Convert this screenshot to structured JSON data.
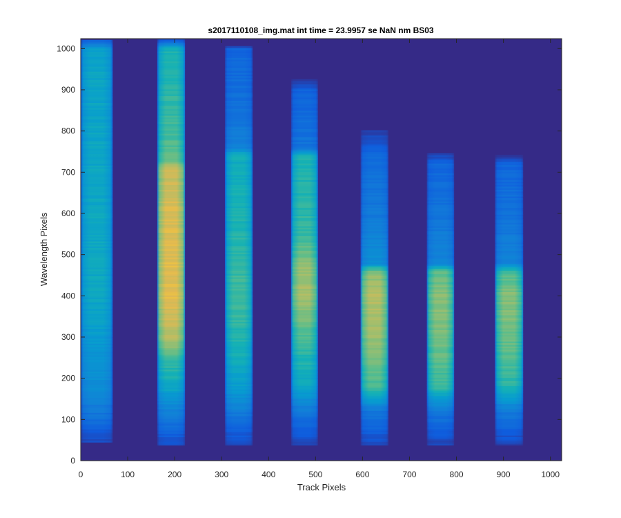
{
  "chart_data": {
    "type": "heatmap",
    "title": "s2017110108_img.mat int time = 23.9957 se  NaN nm BS03",
    "xlabel": "Track Pixels",
    "ylabel": "Wavelength Pixels",
    "xlim": [
      0,
      1024
    ],
    "ylim": [
      0,
      1024
    ],
    "xticks": [
      0,
      100,
      200,
      300,
      400,
      500,
      600,
      700,
      800,
      900,
      1000
    ],
    "yticks": [
      0,
      100,
      200,
      300,
      400,
      500,
      600,
      700,
      800,
      900,
      1000
    ],
    "colormap": "parula",
    "background_color": "#352a87",
    "grid": false,
    "legend": "none",
    "tracks": [
      {
        "x_start": 0,
        "x_end": 68,
        "y_start": 45,
        "y_end": 1020,
        "profile": [
          [
            45,
            0.1
          ],
          [
            120,
            0.28
          ],
          [
            180,
            0.38
          ],
          [
            260,
            0.42
          ],
          [
            400,
            0.5
          ],
          [
            600,
            0.5
          ],
          [
            800,
            0.49
          ],
          [
            1000,
            0.48
          ],
          [
            1020,
            0.18
          ]
        ]
      },
      {
        "x_start": 163,
        "x_end": 222,
        "y_start": 38,
        "y_end": 1020,
        "profile": [
          [
            38,
            0.1
          ],
          [
            120,
            0.32
          ],
          [
            180,
            0.5
          ],
          [
            250,
            0.62
          ],
          [
            300,
            0.78
          ],
          [
            400,
            0.86
          ],
          [
            600,
            0.84
          ],
          [
            715,
            0.8
          ],
          [
            730,
            0.66
          ],
          [
            800,
            0.62
          ],
          [
            900,
            0.58
          ],
          [
            1000,
            0.55
          ],
          [
            1020,
            0.18
          ]
        ]
      },
      {
        "x_start": 307,
        "x_end": 366,
        "y_start": 38,
        "y_end": 1005,
        "profile": [
          [
            38,
            0.08
          ],
          [
            120,
            0.3
          ],
          [
            180,
            0.45
          ],
          [
            280,
            0.56
          ],
          [
            400,
            0.62
          ],
          [
            600,
            0.55
          ],
          [
            745,
            0.52
          ],
          [
            760,
            0.32
          ],
          [
            850,
            0.25
          ],
          [
            1000,
            0.2
          ],
          [
            1005,
            0.08
          ]
        ]
      },
      {
        "x_start": 448,
        "x_end": 505,
        "y_start": 38,
        "y_end": 925,
        "profile": [
          [
            38,
            0.08
          ],
          [
            120,
            0.28
          ],
          [
            180,
            0.5
          ],
          [
            280,
            0.6
          ],
          [
            400,
            0.76
          ],
          [
            460,
            0.74
          ],
          [
            550,
            0.6
          ],
          [
            740,
            0.55
          ],
          [
            760,
            0.26
          ],
          [
            900,
            0.18
          ],
          [
            925,
            0.06
          ]
        ]
      },
      {
        "x_start": 596,
        "x_end": 655,
        "y_start": 38,
        "y_end": 800,
        "profile": [
          [
            38,
            0.08
          ],
          [
            120,
            0.28
          ],
          [
            180,
            0.62
          ],
          [
            280,
            0.72
          ],
          [
            400,
            0.78
          ],
          [
            460,
            0.7
          ],
          [
            480,
            0.38
          ],
          [
            600,
            0.28
          ],
          [
            740,
            0.22
          ],
          [
            800,
            0.06
          ]
        ]
      },
      {
        "x_start": 737,
        "x_end": 795,
        "y_start": 38,
        "y_end": 745,
        "profile": [
          [
            38,
            0.08
          ],
          [
            120,
            0.28
          ],
          [
            180,
            0.6
          ],
          [
            280,
            0.68
          ],
          [
            400,
            0.72
          ],
          [
            460,
            0.65
          ],
          [
            480,
            0.34
          ],
          [
            600,
            0.26
          ],
          [
            720,
            0.2
          ],
          [
            745,
            0.06
          ]
        ]
      },
      {
        "x_start": 882,
        "x_end": 942,
        "y_start": 38,
        "y_end": 740,
        "profile": [
          [
            38,
            0.08
          ],
          [
            120,
            0.28
          ],
          [
            180,
            0.58
          ],
          [
            280,
            0.66
          ],
          [
            400,
            0.72
          ],
          [
            460,
            0.62
          ],
          [
            480,
            0.33
          ],
          [
            600,
            0.25
          ],
          [
            720,
            0.2
          ],
          [
            740,
            0.06
          ]
        ]
      }
    ]
  }
}
